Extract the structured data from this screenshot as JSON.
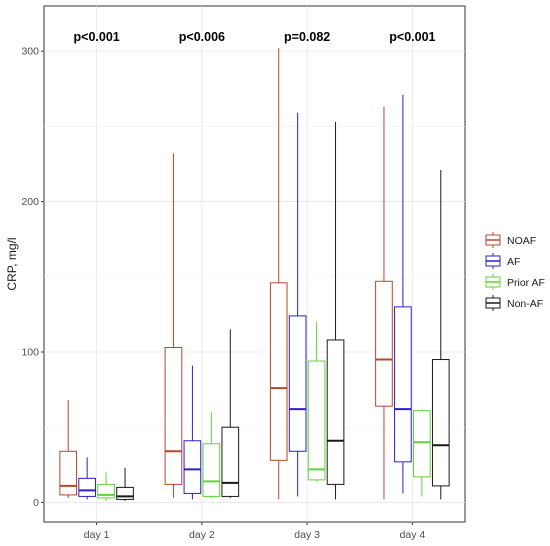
{
  "chart_data": {
    "type": "box",
    "ylabel": "CRP, mg/l",
    "xlabel": "",
    "ylim": [
      -13,
      330
    ],
    "yticks": [
      0,
      100,
      200,
      300
    ],
    "grid": true,
    "legend_position": "right",
    "categories": [
      "day 1",
      "day 2",
      "day 3",
      "day 4"
    ],
    "p_values": [
      "p<0.001",
      "p<0.006",
      "p=0.082",
      "p<0.001"
    ],
    "series": [
      {
        "name": "NOAF",
        "color": "#b5472c",
        "boxes": [
          {
            "min": 3,
            "q1": 5,
            "median": 11,
            "q3": 34,
            "max": 68
          },
          {
            "min": 3,
            "q1": 12,
            "median": 34,
            "q3": 103,
            "max": 232
          },
          {
            "min": 2,
            "q1": 28,
            "median": 76,
            "q3": 146,
            "max": 302
          },
          {
            "min": 2,
            "q1": 64,
            "median": 95,
            "q3": 147,
            "max": 263
          }
        ]
      },
      {
        "name": "AF",
        "color": "#2b1fd0",
        "boxes": [
          {
            "min": 2,
            "q1": 4,
            "median": 8,
            "q3": 16,
            "max": 30
          },
          {
            "min": 2,
            "q1": 6,
            "median": 22,
            "q3": 41,
            "max": 91
          },
          {
            "min": 4,
            "q1": 34,
            "median": 62,
            "q3": 124,
            "max": 259
          },
          {
            "min": 6,
            "q1": 27,
            "median": 62,
            "q3": 130,
            "max": 271
          }
        ]
      },
      {
        "name": "Prior AF",
        "color": "#63d13a",
        "boxes": [
          {
            "min": 1,
            "q1": 3,
            "median": 5,
            "q3": 12,
            "max": 20
          },
          {
            "min": 3,
            "q1": 4,
            "median": 14,
            "q3": 39,
            "max": 60
          },
          {
            "min": 14,
            "q1": 15,
            "median": 22,
            "q3": 94,
            "max": 120
          },
          {
            "min": 4,
            "q1": 17,
            "median": 40,
            "q3": 61,
            "max": 62
          }
        ]
      },
      {
        "name": "Non-AF",
        "color": "#1a1a1a",
        "boxes": [
          {
            "min": 1,
            "q1": 2,
            "median": 4,
            "q3": 10,
            "max": 23
          },
          {
            "min": 3,
            "q1": 4,
            "median": 13,
            "q3": 50,
            "max": 115
          },
          {
            "min": 2,
            "q1": 12,
            "median": 41,
            "q3": 108,
            "max": 253
          },
          {
            "min": 2,
            "q1": 11,
            "median": 38,
            "q3": 95,
            "max": 221
          }
        ]
      }
    ]
  }
}
